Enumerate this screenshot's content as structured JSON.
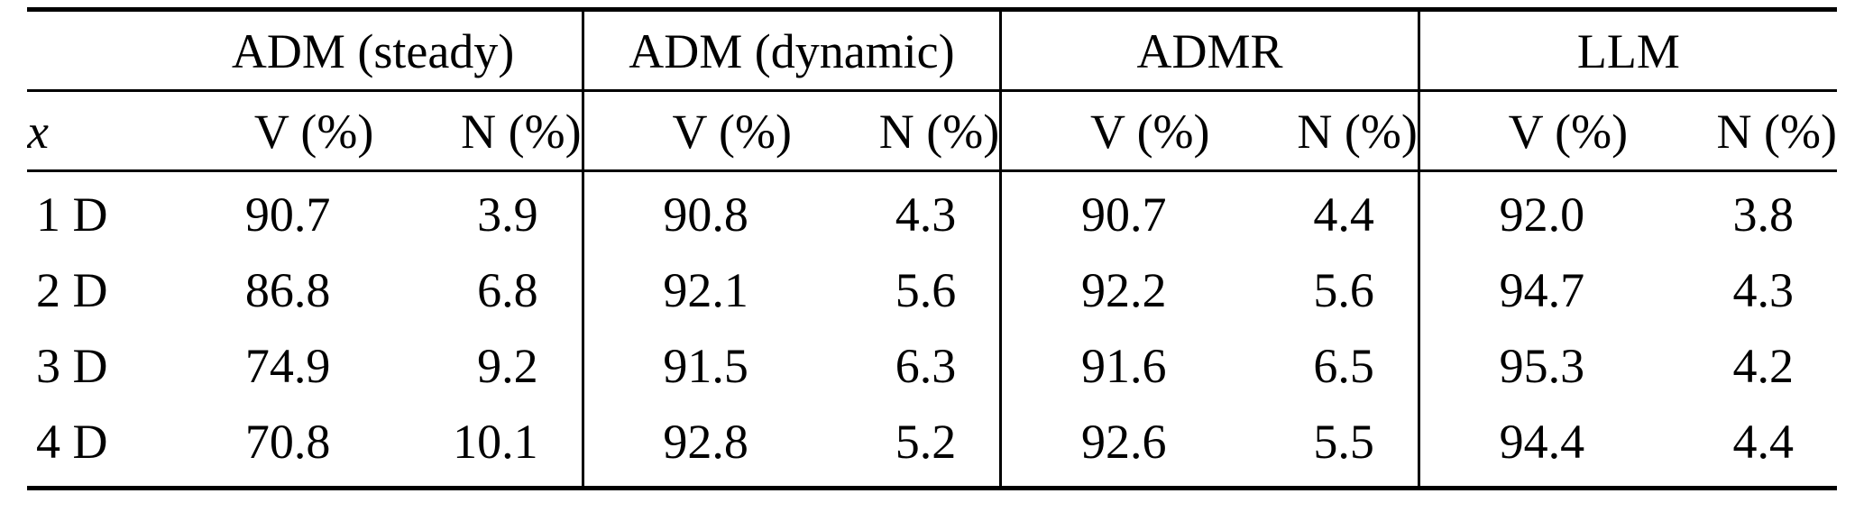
{
  "table": {
    "row_header_label": "x",
    "groups": [
      {
        "label": "ADM (steady)"
      },
      {
        "label": "ADM (dynamic)"
      },
      {
        "label": "ADMR"
      },
      {
        "label": "LLM"
      }
    ],
    "sub_headers": {
      "v": "V (%)",
      "n": "N (%)"
    },
    "rows": [
      {
        "label": "1 D",
        "values": [
          "90.7",
          "3.9",
          "90.8",
          "4.3",
          "90.7",
          "4.4",
          "92.0",
          "3.8"
        ]
      },
      {
        "label": "2 D",
        "values": [
          "86.8",
          "6.8",
          "92.1",
          "5.6",
          "92.2",
          "5.6",
          "94.7",
          "4.3"
        ]
      },
      {
        "label": "3 D",
        "values": [
          "74.9",
          "9.2",
          "91.5",
          "6.3",
          "91.6",
          "6.5",
          "95.3",
          "4.2"
        ]
      },
      {
        "label": "4 D",
        "values": [
          "70.8",
          "10.1",
          "92.8",
          "5.2",
          "92.6",
          "5.5",
          "94.4",
          "4.4"
        ]
      }
    ]
  },
  "chart_data": {
    "type": "table",
    "title": "",
    "column_groups": [
      "ADM (steady)",
      "ADM (dynamic)",
      "ADMR",
      "LLM"
    ],
    "columns": [
      "x",
      "V (%)",
      "N (%)",
      "V (%)",
      "N (%)",
      "V (%)",
      "N (%)",
      "V (%)",
      "N (%)"
    ],
    "rows": [
      [
        "1 D",
        90.7,
        3.9,
        90.8,
        4.3,
        90.7,
        4.4,
        92.0,
        3.8
      ],
      [
        "2 D",
        86.8,
        6.8,
        92.1,
        5.6,
        92.2,
        5.6,
        94.7,
        4.3
      ],
      [
        "3 D",
        74.9,
        9.2,
        91.5,
        6.3,
        91.6,
        6.5,
        95.3,
        4.2
      ],
      [
        "4 D",
        70.8,
        10.1,
        92.8,
        5.2,
        92.6,
        5.5,
        94.4,
        4.4
      ]
    ]
  }
}
